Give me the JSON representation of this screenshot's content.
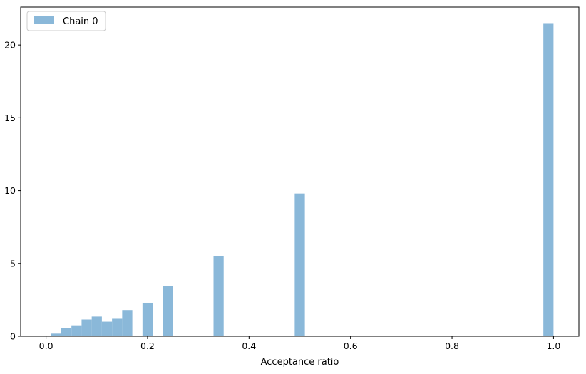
{
  "chart_data": {
    "type": "bar",
    "title": "",
    "xlabel": "Acceptance ratio",
    "ylabel": "",
    "xlim": [
      -0.05,
      1.05
    ],
    "ylim": [
      0,
      22.6
    ],
    "xticks": [
      0.0,
      0.2,
      0.4,
      0.6,
      0.8,
      1.0
    ],
    "xtick_labels": [
      "0.0",
      "0.2",
      "0.4",
      "0.6",
      "0.8",
      "1.0"
    ],
    "yticks": [
      0,
      5,
      10,
      15,
      20
    ],
    "ytick_labels": [
      "0",
      "5",
      "10",
      "15",
      "20"
    ],
    "grid": false,
    "legend": {
      "position": "top-left",
      "entries": [
        "Chain 0"
      ]
    },
    "series": [
      {
        "name": "Chain 0",
        "color": "#8ab8d9",
        "bin_width": 0.02,
        "bins": [
          {
            "x0": 0.01,
            "x1": 0.03,
            "value": 0.18
          },
          {
            "x0": 0.03,
            "x1": 0.05,
            "value": 0.55
          },
          {
            "x0": 0.05,
            "x1": 0.07,
            "value": 0.75
          },
          {
            "x0": 0.07,
            "x1": 0.09,
            "value": 1.15
          },
          {
            "x0": 0.09,
            "x1": 0.11,
            "value": 1.35
          },
          {
            "x0": 0.11,
            "x1": 0.13,
            "value": 1.0
          },
          {
            "x0": 0.13,
            "x1": 0.15,
            "value": 1.2
          },
          {
            "x0": 0.15,
            "x1": 0.17,
            "value": 1.8
          },
          {
            "x0": 0.19,
            "x1": 0.21,
            "value": 2.3
          },
          {
            "x0": 0.23,
            "x1": 0.25,
            "value": 3.45
          },
          {
            "x0": 0.33,
            "x1": 0.35,
            "value": 5.5
          },
          {
            "x0": 0.49,
            "x1": 0.51,
            "value": 9.8
          },
          {
            "x0": 0.98,
            "x1": 1.0,
            "value": 21.5
          }
        ]
      }
    ]
  }
}
